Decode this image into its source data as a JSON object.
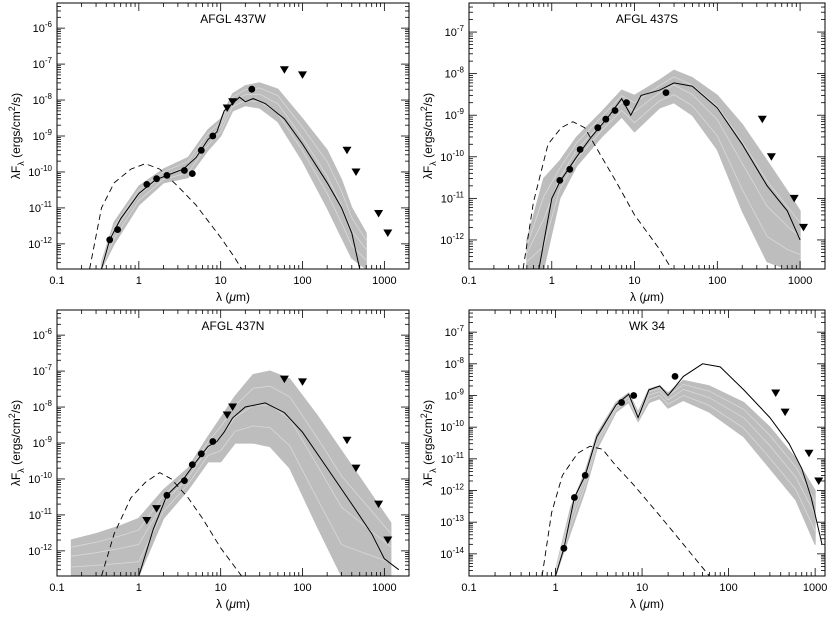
{
  "chart_data": [
    {
      "type": "scatter",
      "title": "AFGL 437W",
      "xlabel_parts": [
        "λ (",
        "μ",
        "m)"
      ],
      "ylabel_parts": [
        "λF",
        "λ",
        " (ergs/cm",
        "2",
        "/s)"
      ],
      "xscale": "log",
      "yscale": "log",
      "xlim": [
        0.1,
        2000
      ],
      "ylim": [
        2e-13,
        5e-06
      ],
      "x_ticks": [
        0.1,
        1,
        10,
        100,
        1000
      ],
      "x_tick_labels": [
        "0.1",
        "1",
        "10",
        "100",
        "1000"
      ],
      "y_ticks": [
        1e-12,
        1e-11,
        1e-10,
        1e-09,
        1e-08,
        1e-07,
        1e-06
      ],
      "y_tick_exponents": [
        "-12",
        "-11",
        "-10",
        "-9",
        "-8",
        "-7",
        "-6"
      ],
      "detections": [
        [
          0.44,
          1.3e-12
        ],
        [
          0.55,
          2.5e-12
        ],
        [
          1.25,
          4.5e-11
        ],
        [
          1.65,
          6.5e-11
        ],
        [
          2.2,
          8e-11
        ],
        [
          3.6,
          1.1e-10
        ],
        [
          4.5,
          9e-11
        ],
        [
          5.8,
          4e-10
        ],
        [
          8.0,
          1e-09
        ],
        [
          24,
          2e-08
        ]
      ],
      "upper_limits": [
        [
          12,
          6e-09
        ],
        [
          14,
          9e-09
        ],
        [
          60,
          7e-08
        ],
        [
          100,
          5e-08
        ],
        [
          350,
          4e-10
        ],
        [
          450,
          1e-10
        ],
        [
          850,
          7e-12
        ],
        [
          1100,
          2e-12
        ]
      ],
      "best_fit": [
        [
          0.35,
          2e-13
        ],
        [
          0.44,
          1.3e-12
        ],
        [
          0.6,
          5e-12
        ],
        [
          1,
          2.5e-11
        ],
        [
          1.6,
          6e-11
        ],
        [
          2.2,
          8e-11
        ],
        [
          3.5,
          1.2e-10
        ],
        [
          5,
          2.5e-10
        ],
        [
          7,
          8e-10
        ],
        [
          9,
          1.3e-09
        ],
        [
          11,
          5e-09
        ],
        [
          14,
          8e-09
        ],
        [
          17,
          1.2e-08
        ],
        [
          20,
          9e-09
        ],
        [
          25,
          1.1e-08
        ],
        [
          35,
          8e-09
        ],
        [
          60,
          3e-09
        ],
        [
          100,
          6e-10
        ],
        [
          200,
          5e-11
        ],
        [
          300,
          1e-11
        ],
        [
          400,
          2e-12
        ],
        [
          500,
          2e-13
        ]
      ],
      "model_band": [
        [
          0.35,
          3e-13,
          2e-13
        ],
        [
          0.5,
          4e-12,
          1e-12
        ],
        [
          1,
          4e-11,
          1.2e-11
        ],
        [
          2,
          1.2e-10,
          5e-11
        ],
        [
          4,
          2.5e-10,
          7e-11
        ],
        [
          7,
          1.5e-09,
          4e-10
        ],
        [
          10,
          3e-09,
          1e-09
        ],
        [
          14,
          1.5e-08,
          5e-09
        ],
        [
          20,
          2.5e-08,
          7e-09
        ],
        [
          30,
          3e-08,
          6e-09
        ],
        [
          50,
          2e-08,
          2.5e-09
        ],
        [
          100,
          3e-09,
          2e-10
        ],
        [
          200,
          4e-10,
          1e-11
        ],
        [
          300,
          6e-11,
          1.5e-12
        ],
        [
          400,
          1e-11,
          4e-13
        ],
        [
          600,
          2e-12,
          2e-13
        ]
      ],
      "stellar_photosphere": [
        [
          0.25,
          2e-13
        ],
        [
          0.35,
          1e-11
        ],
        [
          0.5,
          5e-11
        ],
        [
          0.8,
          1.2e-10
        ],
        [
          1.2,
          1.7e-10
        ],
        [
          1.8,
          1.2e-10
        ],
        [
          3,
          4e-11
        ],
        [
          5,
          1.2e-11
        ],
        [
          10,
          1.5e-12
        ],
        [
          15,
          4e-13
        ],
        [
          18,
          2e-13
        ]
      ]
    },
    {
      "type": "scatter",
      "title": "AFGL 437S",
      "xlabel_parts": [
        "λ (",
        "μ",
        "m)"
      ],
      "ylabel_parts": [
        "λF",
        "λ",
        " (ergs/cm",
        "2",
        "/s)"
      ],
      "xscale": "log",
      "yscale": "log",
      "xlim": [
        0.1,
        2000
      ],
      "ylim": [
        2e-13,
        5e-07
      ],
      "x_ticks": [
        0.1,
        1,
        10,
        100,
        1000
      ],
      "x_tick_labels": [
        "0.1",
        "1",
        "10",
        "100",
        "1000"
      ],
      "y_ticks": [
        1e-12,
        1e-11,
        1e-10,
        1e-09,
        1e-08,
        1e-07
      ],
      "y_tick_exponents": [
        "-12",
        "-11",
        "-10",
        "-9",
        "-8",
        "-7"
      ],
      "detections": [
        [
          1.25,
          2.7e-11
        ],
        [
          1.65,
          5e-11
        ],
        [
          2.2,
          1.5e-10
        ],
        [
          3.6,
          5e-10
        ],
        [
          4.5,
          8e-10
        ],
        [
          5.8,
          1.3e-09
        ],
        [
          8.0,
          2e-09
        ],
        [
          24,
          3.5e-09
        ]
      ],
      "upper_limits": [
        [
          350,
          8e-10
        ],
        [
          450,
          1e-10
        ],
        [
          850,
          1e-11
        ],
        [
          1100,
          2e-12
        ]
      ],
      "best_fit": [
        [
          0.7,
          2e-13
        ],
        [
          1,
          1e-11
        ],
        [
          1.25,
          2.5e-11
        ],
        [
          2,
          1e-10
        ],
        [
          3,
          3e-10
        ],
        [
          5,
          1e-09
        ],
        [
          7,
          2.5e-09
        ],
        [
          9,
          1e-09
        ],
        [
          12,
          3e-09
        ],
        [
          20,
          4e-09
        ],
        [
          30,
          6e-09
        ],
        [
          50,
          5e-09
        ],
        [
          100,
          1.5e-09
        ],
        [
          200,
          2e-10
        ],
        [
          400,
          2e-11
        ],
        [
          700,
          5e-12
        ],
        [
          1000,
          1e-12
        ]
      ],
      "model_band": [
        [
          0.5,
          1e-12,
          2e-13
        ],
        [
          0.8,
          3e-11,
          2e-13
        ],
        [
          1.25,
          8e-11,
          1e-11
        ],
        [
          2,
          3e-10,
          6e-11
        ],
        [
          4,
          1.2e-09,
          3e-10
        ],
        [
          7,
          4e-09,
          9e-10
        ],
        [
          10,
          3e-09,
          4e-10
        ],
        [
          20,
          7e-09,
          1.5e-09
        ],
        [
          30,
          1.2e-08,
          2e-09
        ],
        [
          50,
          8e-09,
          1e-09
        ],
        [
          100,
          3e-09,
          1.5e-10
        ],
        [
          200,
          6e-10,
          5e-12
        ],
        [
          400,
          8e-11,
          3e-13
        ],
        [
          700,
          1.5e-11,
          2e-13
        ],
        [
          1000,
          5e-12,
          2e-13
        ]
      ],
      "stellar_photosphere": [
        [
          0.45,
          2e-13
        ],
        [
          0.6,
          8e-12
        ],
        [
          0.9,
          2e-10
        ],
        [
          1.3,
          5e-10
        ],
        [
          1.8,
          7e-10
        ],
        [
          2.5,
          5e-10
        ],
        [
          4,
          1e-10
        ],
        [
          6,
          2.5e-11
        ],
        [
          10,
          4e-12
        ],
        [
          20,
          6e-13
        ],
        [
          28,
          2e-13
        ]
      ]
    },
    {
      "type": "scatter",
      "title": "AFGL 437N",
      "xlabel_parts": [
        "λ (",
        "μ",
        "m)"
      ],
      "ylabel_parts": [
        "λF",
        "λ",
        " (ergs/cm",
        "2",
        "/s)"
      ],
      "xscale": "log",
      "yscale": "log",
      "xlim": [
        0.1,
        2000
      ],
      "ylim": [
        2e-13,
        5e-06
      ],
      "x_ticks": [
        0.1,
        1,
        10,
        100,
        1000
      ],
      "x_tick_labels": [
        "0.1",
        "1",
        "10",
        "100",
        "1000"
      ],
      "y_ticks": [
        1e-12,
        1e-11,
        1e-10,
        1e-09,
        1e-08,
        1e-07,
        1e-06
      ],
      "y_tick_exponents": [
        "-12",
        "-11",
        "-10",
        "-9",
        "-8",
        "-7",
        "-6"
      ],
      "detections": [
        [
          2.2,
          3.5e-11
        ],
        [
          3.6,
          9e-11
        ],
        [
          4.5,
          2.5e-10
        ],
        [
          5.8,
          5e-10
        ],
        [
          8.0,
          1.1e-09
        ]
      ],
      "upper_limits": [
        [
          1.25,
          7e-12
        ],
        [
          1.65,
          1.5e-11
        ],
        [
          12,
          6e-09
        ],
        [
          14,
          1e-08
        ],
        [
          60,
          6e-08
        ],
        [
          100,
          5e-08
        ],
        [
          350,
          1.2e-09
        ],
        [
          450,
          2e-10
        ],
        [
          850,
          2e-11
        ],
        [
          1100,
          2e-12
        ]
      ],
      "best_fit": [
        [
          1,
          2e-13
        ],
        [
          1.5,
          4e-12
        ],
        [
          2.2,
          3.5e-11
        ],
        [
          3.5,
          1e-10
        ],
        [
          5,
          3e-10
        ],
        [
          7,
          8e-10
        ],
        [
          9,
          1.1e-09
        ],
        [
          11,
          2e-09
        ],
        [
          14,
          5e-09
        ],
        [
          20,
          1e-08
        ],
        [
          35,
          1.3e-08
        ],
        [
          60,
          7e-09
        ],
        [
          100,
          2e-09
        ],
        [
          200,
          2e-10
        ],
        [
          400,
          2e-11
        ],
        [
          700,
          3e-12
        ],
        [
          1000,
          6e-13
        ],
        [
          1500,
          3e-13
        ]
      ],
      "model_band": [
        [
          0.15,
          2e-12,
          2e-13
        ],
        [
          0.3,
          3e-12,
          2e-13
        ],
        [
          0.6,
          5e-12,
          2e-13
        ],
        [
          1,
          8e-12,
          2e-13
        ],
        [
          2,
          5e-11,
          8e-12
        ],
        [
          4,
          2e-10,
          5e-11
        ],
        [
          7,
          1.5e-09,
          3e-10
        ],
        [
          10,
          5e-09,
          3e-10
        ],
        [
          15,
          2e-08,
          1e-09
        ],
        [
          25,
          8e-08,
          1e-09
        ],
        [
          40,
          1e-07,
          8e-10
        ],
        [
          70,
          6e-08,
          2e-10
        ],
        [
          150,
          6e-09,
          5e-12
        ],
        [
          300,
          6e-10,
          2e-13
        ],
        [
          600,
          6e-11,
          2e-13
        ],
        [
          1200,
          6e-12,
          2e-13
        ]
      ],
      "stellar_photosphere": [
        [
          0.35,
          2e-13
        ],
        [
          0.5,
          3e-12
        ],
        [
          0.8,
          3e-11
        ],
        [
          1.2,
          8e-11
        ],
        [
          1.8,
          1.5e-10
        ],
        [
          2.5,
          1e-10
        ],
        [
          4,
          3e-11
        ],
        [
          6,
          8e-12
        ],
        [
          10,
          1.2e-12
        ],
        [
          18,
          2e-13
        ]
      ]
    },
    {
      "type": "scatter",
      "title": "WK 34",
      "xlabel_parts": [
        "λ (",
        "μ",
        "m)"
      ],
      "ylabel_parts": [
        "λF",
        "λ",
        " (ergs/cm",
        "2",
        "/s)"
      ],
      "xscale": "log",
      "yscale": "log",
      "xlim": [
        0.1,
        1300
      ],
      "ylim": [
        2e-15,
        5e-07
      ],
      "x_ticks": [
        0.1,
        1,
        10,
        100,
        1000
      ],
      "x_tick_labels": [
        "0.1",
        "1",
        "10",
        "100",
        "1000"
      ],
      "y_ticks": [
        1e-14,
        1e-13,
        1e-12,
        1e-11,
        1e-10,
        1e-09,
        1e-08,
        1e-07
      ],
      "y_tick_exponents": [
        "-14",
        "-13",
        "-12",
        "-11",
        "-10",
        "-9",
        "-8",
        "-7"
      ],
      "detections": [
        [
          1.25,
          1.5e-14
        ],
        [
          1.65,
          6e-13
        ],
        [
          2.2,
          3e-12
        ],
        [
          5.8,
          6e-10
        ],
        [
          8.0,
          1e-09
        ],
        [
          24,
          4e-09
        ]
      ],
      "upper_limits": [
        [
          350,
          1.2e-09
        ],
        [
          450,
          3e-10
        ],
        [
          850,
          1.5e-11
        ],
        [
          1100,
          2e-12
        ]
      ],
      "best_fit": [
        [
          1,
          2e-15
        ],
        [
          1.25,
          1.5e-14
        ],
        [
          1.65,
          6e-13
        ],
        [
          2.2,
          3e-12
        ],
        [
          3,
          5e-11
        ],
        [
          5,
          5e-10
        ],
        [
          7,
          1.1e-09
        ],
        [
          9,
          2e-10
        ],
        [
          12,
          1.5e-09
        ],
        [
          16,
          2e-09
        ],
        [
          20,
          1e-09
        ],
        [
          30,
          4e-09
        ],
        [
          50,
          1e-08
        ],
        [
          80,
          8e-09
        ],
        [
          150,
          1.5e-09
        ],
        [
          300,
          2e-10
        ],
        [
          500,
          3e-11
        ],
        [
          700,
          5e-12
        ],
        [
          900,
          6e-13
        ],
        [
          1200,
          2e-14
        ]
      ],
      "model_band": [
        [
          1,
          3e-15,
          2e-15
        ],
        [
          1.5,
          3e-13,
          5e-14
        ],
        [
          2.2,
          4e-12,
          1e-12
        ],
        [
          3,
          6e-11,
          2e-11
        ],
        [
          5,
          6e-10,
          3e-10
        ],
        [
          7,
          1.2e-09,
          6e-10
        ],
        [
          9,
          3e-10,
          1.5e-10
        ],
        [
          12,
          1.6e-09,
          6e-10
        ],
        [
          16,
          2e-09,
          8e-10
        ],
        [
          20,
          1.2e-09,
          4e-10
        ],
        [
          30,
          3e-09,
          7e-10
        ],
        [
          60,
          2e-09,
          3e-10
        ],
        [
          150,
          6e-10,
          5e-11
        ],
        [
          300,
          1e-10,
          5e-12
        ],
        [
          600,
          1e-11,
          5e-13
        ],
        [
          1000,
          1e-12,
          2e-14
        ]
      ],
      "stellar_photosphere": [
        [
          0.7,
          2e-15
        ],
        [
          0.9,
          2e-13
        ],
        [
          1.2,
          3e-12
        ],
        [
          1.8,
          1.5e-11
        ],
        [
          2.5,
          2.5e-11
        ],
        [
          3.5,
          2e-11
        ],
        [
          5,
          6e-12
        ],
        [
          8,
          1.5e-12
        ],
        [
          15,
          2e-13
        ],
        [
          30,
          2e-14
        ],
        [
          60,
          2e-15
        ]
      ]
    }
  ],
  "colors": {
    "axes": "#000000",
    "best_fit": "#000000",
    "model_band": "#bdbdbd",
    "photosphere": "#000000",
    "markers": "#000000"
  }
}
